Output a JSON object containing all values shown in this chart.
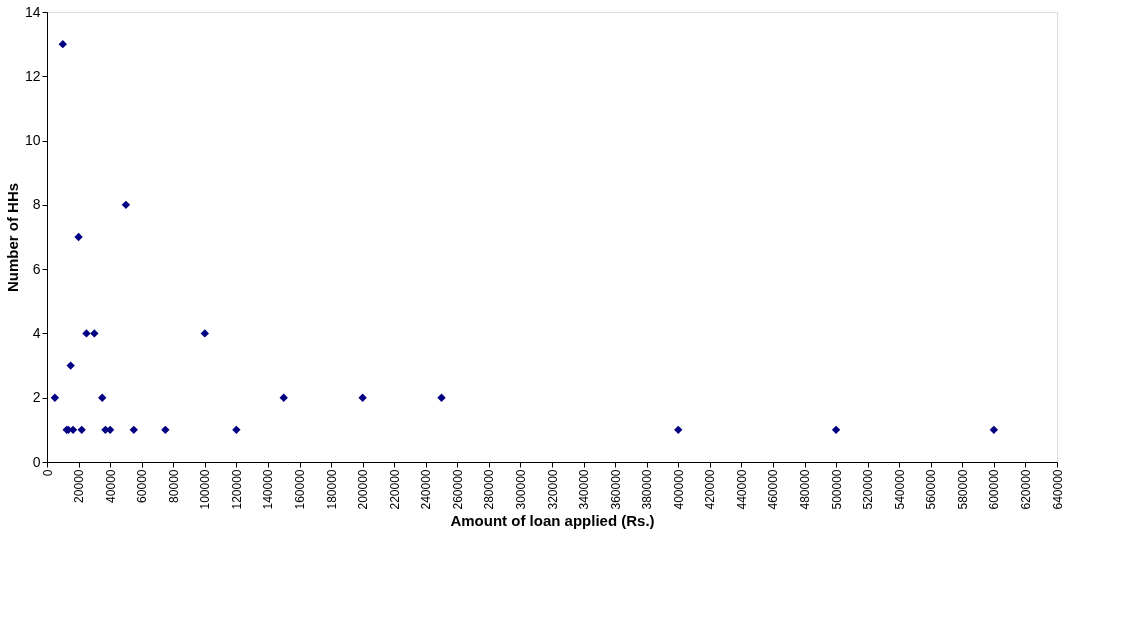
{
  "chart_data": {
    "type": "scatter",
    "xlabel": "Amount of loan applied (Rs.)",
    "ylabel": "Number of HHs",
    "x": [
      5000,
      10000,
      12500,
      13500,
      15000,
      16500,
      20000,
      22000,
      25000,
      30000,
      35000,
      37000,
      40000,
      50000,
      55000,
      75000,
      100000,
      120000,
      150000,
      200000,
      250000,
      400000,
      500000,
      600000
    ],
    "series": [
      {
        "color": "#000080",
        "values": [
          2,
          13,
          1,
          1,
          3,
          1,
          7,
          1,
          4,
          4,
          2,
          1,
          1,
          8,
          1,
          1,
          4,
          1,
          2,
          2,
          2,
          1,
          1,
          1
        ]
      }
    ],
    "xlim": [
      0,
      640000
    ],
    "xticks": [
      0,
      20000,
      40000,
      60000,
      80000,
      100000,
      120000,
      140000,
      160000,
      180000,
      200000,
      220000,
      240000,
      260000,
      280000,
      300000,
      320000,
      340000,
      360000,
      380000,
      400000,
      420000,
      440000,
      460000,
      480000,
      500000,
      520000,
      540000,
      560000,
      580000,
      600000,
      620000,
      640000
    ],
    "ylim": [
      0,
      14
    ],
    "yticks": [
      0,
      2,
      4,
      6,
      8,
      10,
      12,
      14
    ],
    "marker": "diamond",
    "grid": false
  }
}
